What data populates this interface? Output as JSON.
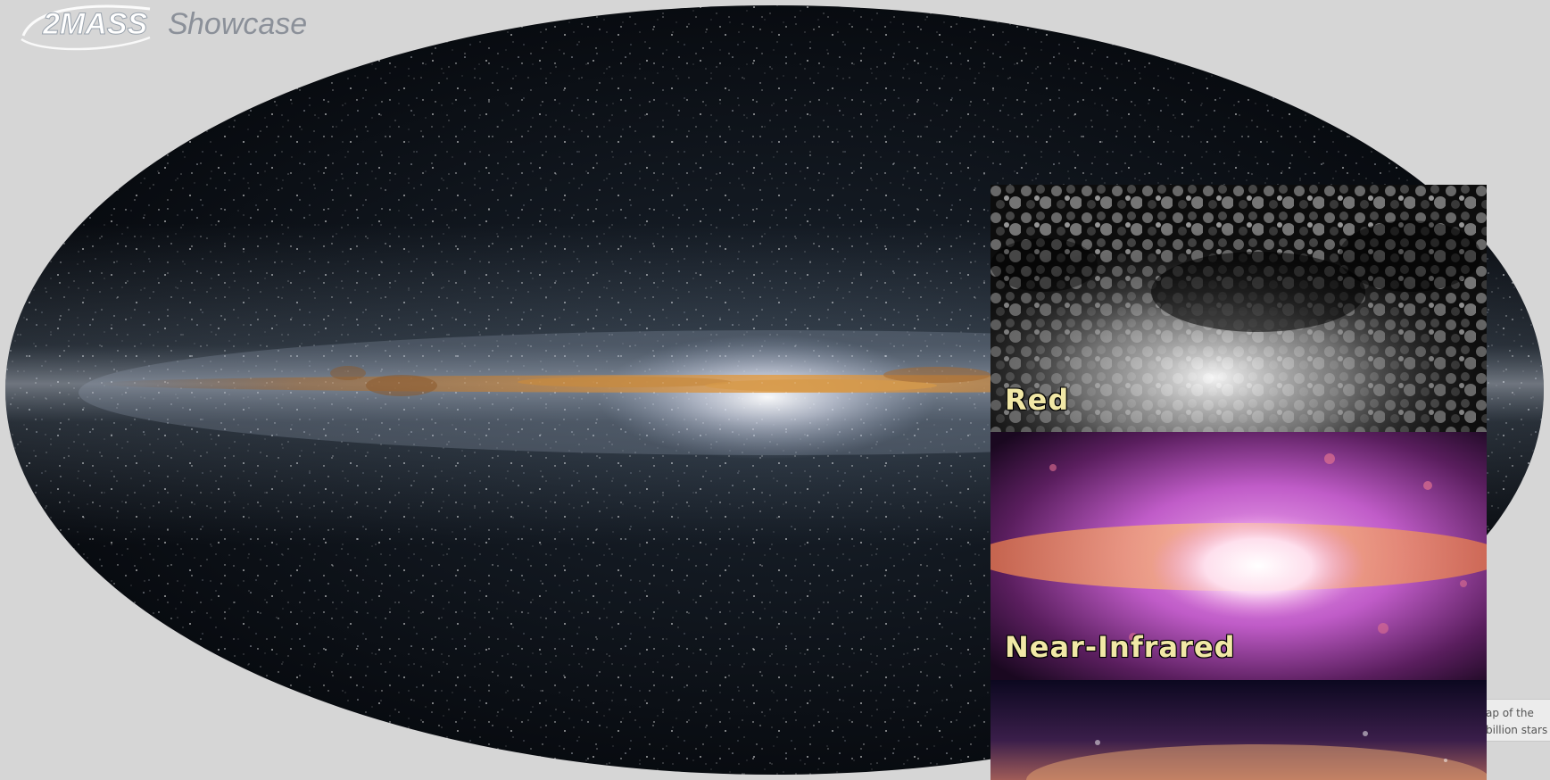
{
  "logo": {
    "number": "2MASS",
    "word": "howcase",
    "initial": "S"
  },
  "sky_map": {
    "subject": "all-sky map",
    "colors": {
      "space": "#0b0f14",
      "band": "#d59a4e",
      "core": "#f4f2f8",
      "backdrop": "#d6d6d6"
    }
  },
  "inset": {
    "panels": [
      {
        "label": "Red"
      },
      {
        "label": "Near-Infrared"
      },
      {
        "label": ""
      }
    ]
  },
  "caption": {
    "line1": "ap of the",
    "line2": "billion stars"
  }
}
